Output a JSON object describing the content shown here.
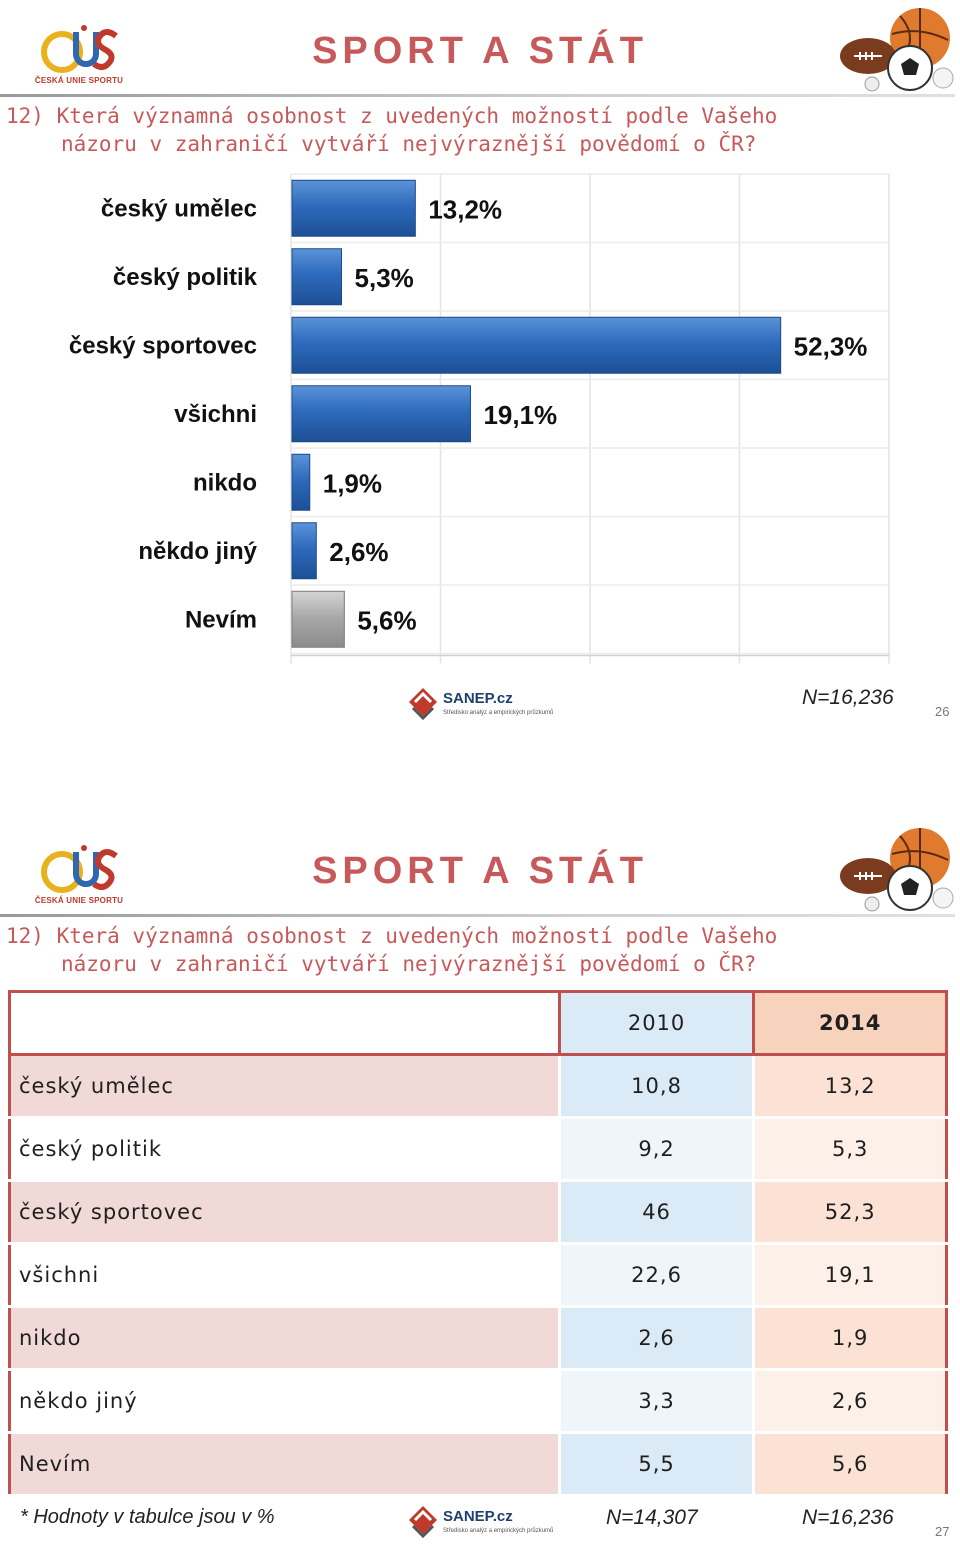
{
  "slides": [
    {
      "logo_text": "ČESKÁ UNIE SPORTU",
      "title": "SPORT A STÁT",
      "question_line1": "12) Která významná osobnost z uvedených možností podle Vašeho",
      "question_line2": "názoru v zahraničí vytváří nejvýraznější povědomí o ČR?",
      "sanep_logo": "SANEP.cz",
      "sanep_sub": "Středisko analýz a empirických průzkumů",
      "n_note": "N=16,236",
      "page_number": "26"
    },
    {
      "logo_text": "ČESKÁ UNIE SPORTU",
      "title": "SPORT A STÁT",
      "question_line1": "12) Která významná osobnost z uvedených možností podle Vašeho",
      "question_line2": "názoru v zahraničí vytváří nejvýraznější povědomí o ČR?",
      "sanep_logo": "SANEP.cz",
      "sanep_sub": "Středisko analýz a empirických průzkumů",
      "footnote": "* Hodnoty v tabulce jsou v %",
      "n_note_2010": "N=14,307",
      "n_note_2014": "N=16,236",
      "page_number": "27"
    }
  ],
  "colors": {
    "title": "#c8595a",
    "bar_blue": "#2e6bbd",
    "bar_grey": "#a6a6a6",
    "table_border": "#c0504d"
  },
  "chart_data": [
    {
      "type": "bar",
      "orientation": "horizontal",
      "categories": [
        "český umělec",
        "český politik",
        "český sportovec",
        "všichni",
        "nikdo",
        "někdo jiný",
        "Nevím"
      ],
      "values": [
        13.2,
        5.3,
        52.3,
        19.1,
        1.9,
        2.6,
        5.6
      ],
      "data_labels": [
        "13,2%",
        "5,3%",
        "52,3%",
        "19,1%",
        "1,9%",
        "2,6%",
        "5,6%"
      ],
      "xlim": [
        0,
        64
      ],
      "grid": true,
      "legend": "none"
    },
    {
      "type": "table",
      "columns": [
        "",
        "2010",
        "2014"
      ],
      "rows": [
        {
          "label": "český umělec",
          "v2010": "10,8",
          "v2014": "13,2"
        },
        {
          "label": "český politik",
          "v2010": "9,2",
          "v2014": "5,3"
        },
        {
          "label": "český sportovec",
          "v2010": "46",
          "v2014": "52,3"
        },
        {
          "label": "všichni",
          "v2010": "22,6",
          "v2014": "19,1"
        },
        {
          "label": "nikdo",
          "v2010": "2,6",
          "v2014": "1,9"
        },
        {
          "label": "někdo jiný",
          "v2010": "3,3",
          "v2014": "2,6"
        },
        {
          "label": "Nevím",
          "v2010": "5,5",
          "v2014": "5,6"
        }
      ]
    }
  ]
}
